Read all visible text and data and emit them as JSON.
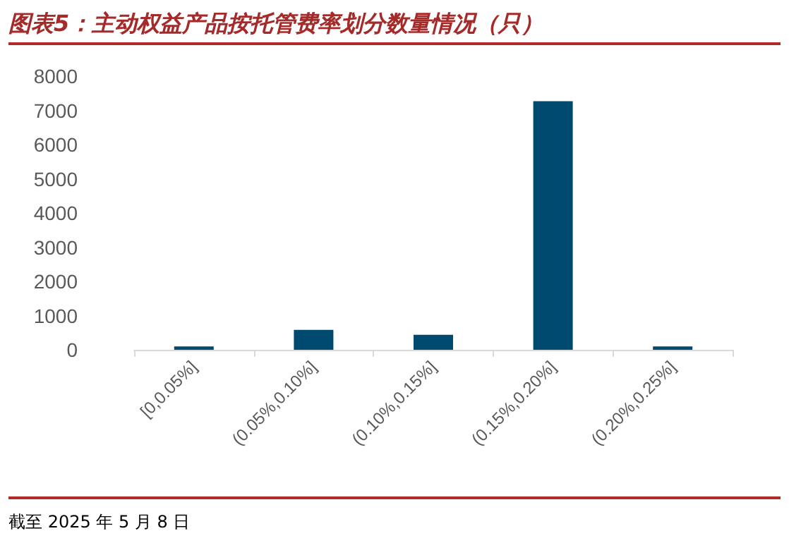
{
  "chart_data": {
    "type": "bar",
    "title": "图表5：主动权益产品按托管费率划分数量情况（只）",
    "categories": [
      "[0,0.05%]",
      "(0.05%,0.10%]",
      "(0.10%,0.15%]",
      "(0.15%,0.20%]",
      "(0.20%,0.25%]"
    ],
    "values": [
      100,
      580,
      440,
      7270,
      100
    ],
    "color": "#004a70",
    "ylim": [
      0,
      8000
    ],
    "yticks": [
      0,
      1000,
      2000,
      3000,
      4000,
      5000,
      6000,
      7000,
      8000
    ],
    "grid": false,
    "annotations": [
      "截至 2025 年 5 月 8 日"
    ]
  }
}
